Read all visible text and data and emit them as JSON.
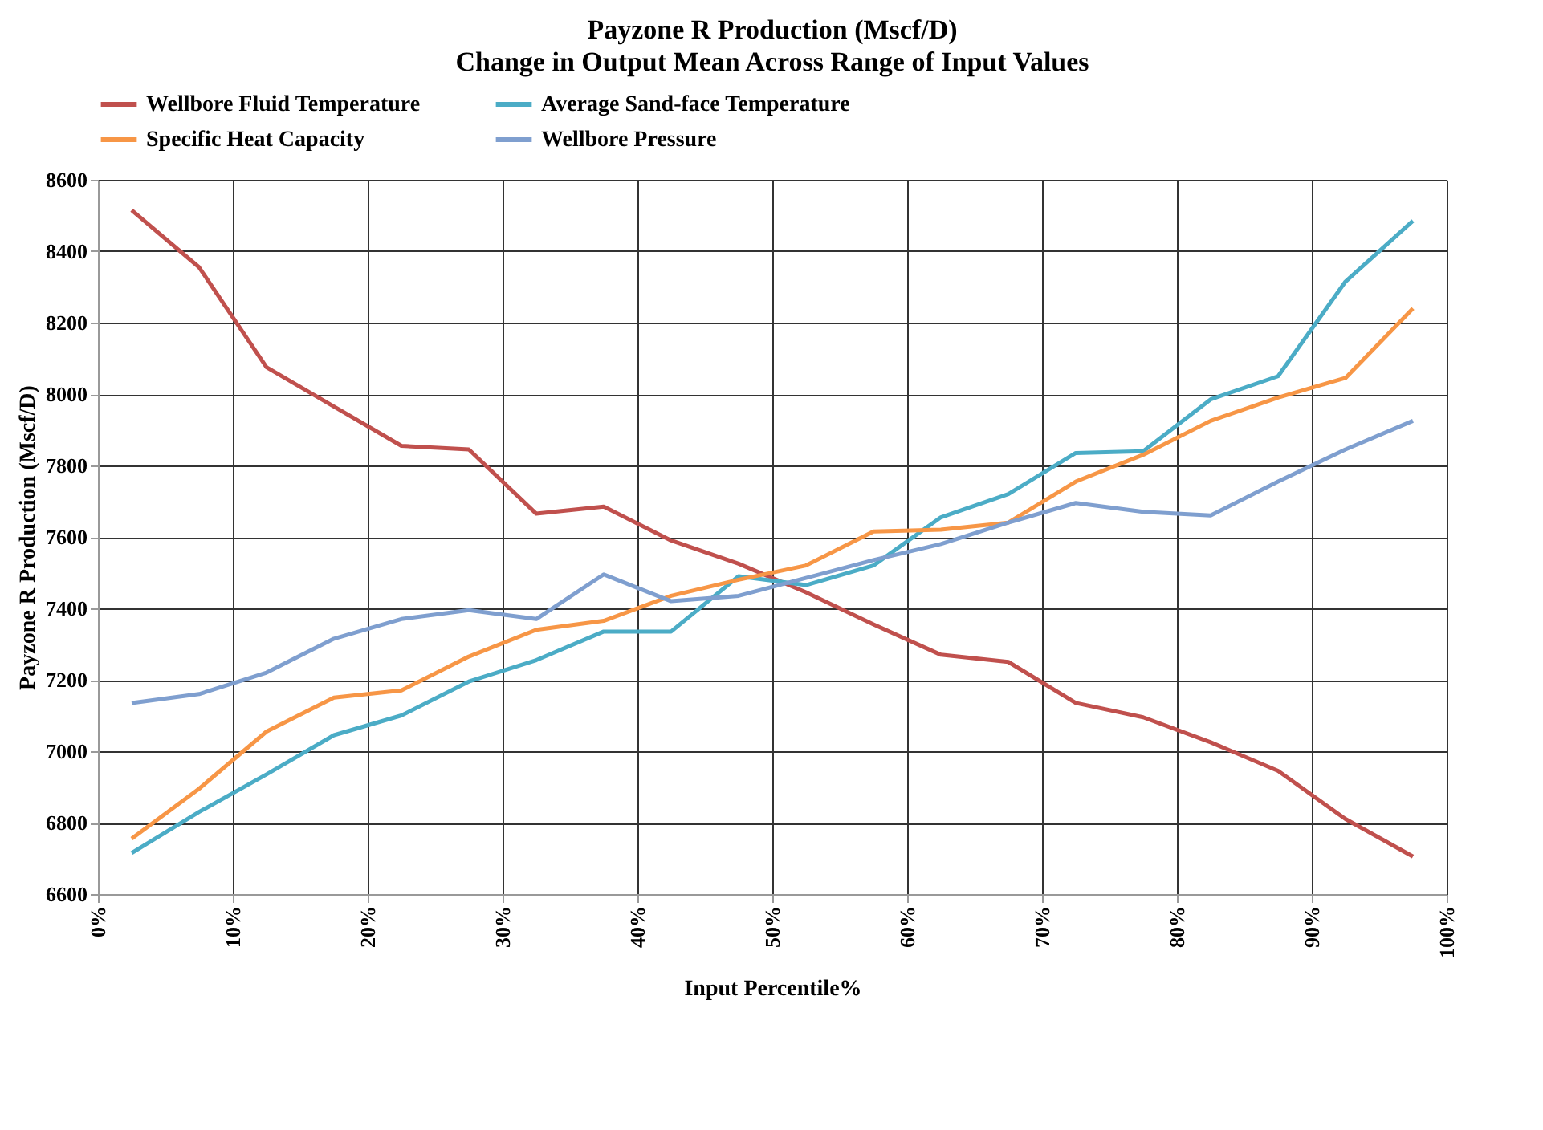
{
  "chart_data": {
    "type": "line",
    "title": "Payzone R Production (Mscf/D)",
    "subtitle": "Change in Output Mean Across Range of Input Values",
    "xlabel": "Input Percentile%",
    "ylabel": "Payzone R Production (Mscf/D)",
    "x": [
      2.5,
      7.5,
      12.5,
      17.5,
      22.5,
      27.5,
      32.5,
      37.5,
      42.5,
      47.5,
      52.5,
      57.5,
      62.5,
      67.5,
      72.5,
      77.5,
      82.5,
      87.5,
      92.5,
      97.5
    ],
    "series": [
      {
        "name": "Wellbore Fluid Temperature",
        "color": "#c0504d",
        "values": [
          8515,
          8355,
          8075,
          7965,
          7855,
          7845,
          7665,
          7685,
          7590,
          7525,
          7445,
          7355,
          7270,
          7250,
          7135,
          7095,
          7025,
          6945,
          6810,
          6705
        ]
      },
      {
        "name": "Average Sand-face Temperature",
        "color": "#4bacc6",
        "values": [
          6715,
          6830,
          6935,
          7045,
          7100,
          7195,
          7255,
          7335,
          7335,
          7490,
          7465,
          7520,
          7655,
          7720,
          7835,
          7840,
          7985,
          8050,
          8315,
          8485
        ]
      },
      {
        "name": "Specific Heat Capacity",
        "color": "#f79646",
        "values": [
          6755,
          6895,
          7055,
          7150,
          7170,
          7265,
          7340,
          7365,
          7435,
          7480,
          7520,
          7615,
          7620,
          7640,
          7755,
          7830,
          7925,
          7990,
          8045,
          8240
        ]
      },
      {
        "name": "Wellbore Pressure",
        "color": "#7f9fcf",
        "values": [
          7135,
          7160,
          7220,
          7315,
          7370,
          7395,
          7370,
          7495,
          7420,
          7435,
          7485,
          7535,
          7580,
          7640,
          7695,
          7670,
          7660,
          7755,
          7845,
          7925
        ]
      }
    ],
    "xlim": [
      0,
      100
    ],
    "xticks": [
      {
        "value": 0,
        "label": "0%"
      },
      {
        "value": 10,
        "label": "10%"
      },
      {
        "value": 20,
        "label": "20%"
      },
      {
        "value": 30,
        "label": "30%"
      },
      {
        "value": 40,
        "label": "40%"
      },
      {
        "value": 50,
        "label": "50%"
      },
      {
        "value": 60,
        "label": "60%"
      },
      {
        "value": 70,
        "label": "70%"
      },
      {
        "value": 80,
        "label": "80%"
      },
      {
        "value": 90,
        "label": "90%"
      },
      {
        "value": 100,
        "label": "100%"
      }
    ],
    "ylim": [
      6600,
      8600
    ],
    "yticks": [
      6600,
      6800,
      7000,
      7200,
      7400,
      7600,
      7800,
      8000,
      8200,
      8400,
      8600
    ],
    "grid": true,
    "legend": "top",
    "marker": "none",
    "line_style": "solid"
  }
}
